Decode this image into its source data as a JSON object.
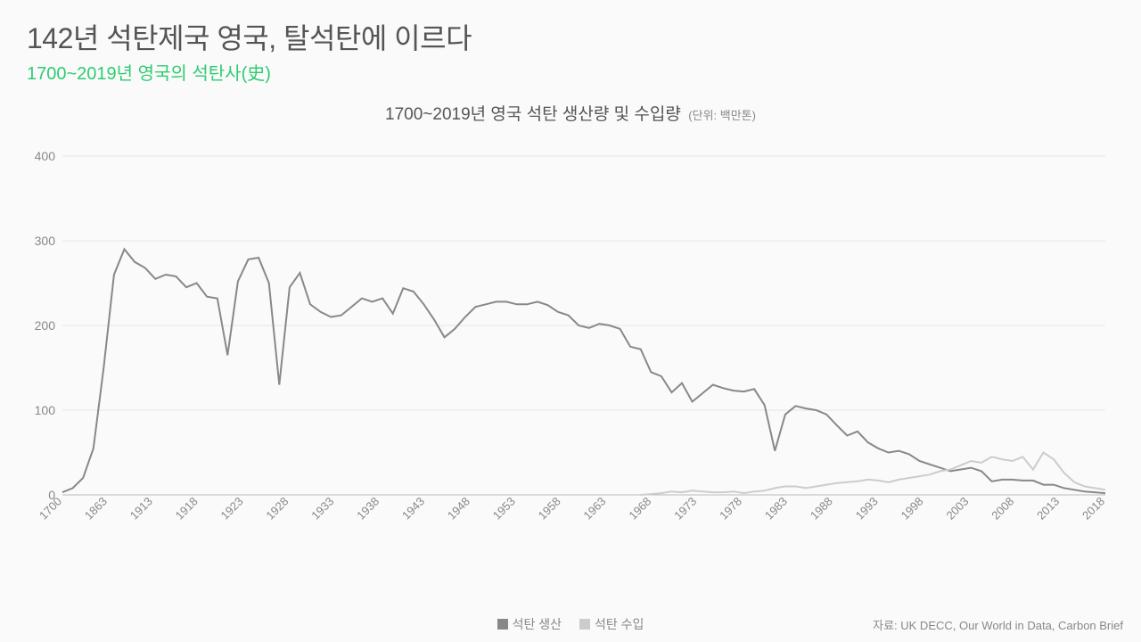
{
  "header": {
    "title": "142년 석탄제국 영국, 탈석탄에 이르다",
    "subtitle": "1700~2019년 영국의 석탄사(史)"
  },
  "chart": {
    "type": "line",
    "title": "1700~2019년 영국 석탄 생산량 및 수입량",
    "unit": "(단위: 백만톤)",
    "background_color": "#fafafa",
    "grid_color": "#e5e5e5",
    "axis_color": "#bbbbbb",
    "text_color": "#888888",
    "title_color": "#555555",
    "accent_color": "#2ecc71",
    "title_fontsize": 19,
    "label_fontsize": 14,
    "tick_fontsize": 13,
    "line_width": 2,
    "ylim": [
      0,
      400
    ],
    "ytick_step": 100,
    "x_labels": [
      "1700",
      "1863",
      "1913",
      "1918",
      "1923",
      "1928",
      "1933",
      "1938",
      "1943",
      "1948",
      "1953",
      "1958",
      "1963",
      "1968",
      "1973",
      "1978",
      "1983",
      "1988",
      "1993",
      "1998",
      "2003",
      "2008",
      "2013",
      "2018"
    ],
    "series": [
      {
        "name": "석탄 생산",
        "color": "#888888",
        "data": [
          [
            0,
            3
          ],
          [
            1,
            8
          ],
          [
            2,
            20
          ],
          [
            3,
            55
          ],
          [
            4,
            150
          ],
          [
            5,
            260
          ],
          [
            6,
            290
          ],
          [
            7,
            275
          ],
          [
            8,
            268
          ],
          [
            9,
            255
          ],
          [
            10,
            260
          ],
          [
            11,
            258
          ],
          [
            12,
            245
          ],
          [
            13,
            250
          ],
          [
            14,
            234
          ],
          [
            15,
            232
          ],
          [
            16,
            165
          ],
          [
            17,
            252
          ],
          [
            18,
            278
          ],
          [
            19,
            280
          ],
          [
            20,
            250
          ],
          [
            21,
            130
          ],
          [
            22,
            245
          ],
          [
            23,
            262
          ],
          [
            24,
            225
          ],
          [
            25,
            216
          ],
          [
            26,
            210
          ],
          [
            27,
            212
          ],
          [
            28,
            222
          ],
          [
            29,
            232
          ],
          [
            30,
            228
          ],
          [
            31,
            232
          ],
          [
            32,
            214
          ],
          [
            33,
            244
          ],
          [
            34,
            240
          ],
          [
            35,
            225
          ],
          [
            36,
            207
          ],
          [
            37,
            186
          ],
          [
            38,
            196
          ],
          [
            39,
            210
          ],
          [
            40,
            222
          ],
          [
            41,
            225
          ],
          [
            42,
            228
          ],
          [
            43,
            228
          ],
          [
            44,
            225
          ],
          [
            45,
            225
          ],
          [
            46,
            228
          ],
          [
            47,
            224
          ],
          [
            48,
            216
          ],
          [
            49,
            212
          ],
          [
            50,
            200
          ],
          [
            51,
            197
          ],
          [
            52,
            202
          ],
          [
            53,
            200
          ],
          [
            54,
            196
          ],
          [
            55,
            175
          ],
          [
            56,
            172
          ],
          [
            57,
            145
          ],
          [
            58,
            140
          ],
          [
            59,
            121
          ],
          [
            60,
            132
          ],
          [
            61,
            110
          ],
          [
            62,
            120
          ],
          [
            63,
            130
          ],
          [
            64,
            126
          ],
          [
            65,
            123
          ],
          [
            66,
            122
          ],
          [
            67,
            125
          ],
          [
            68,
            106
          ],
          [
            69,
            52
          ],
          [
            70,
            95
          ],
          [
            71,
            105
          ],
          [
            72,
            102
          ],
          [
            73,
            100
          ],
          [
            74,
            95
          ],
          [
            75,
            82
          ],
          [
            76,
            70
          ],
          [
            77,
            75
          ],
          [
            78,
            62
          ],
          [
            79,
            55
          ],
          [
            80,
            50
          ],
          [
            81,
            52
          ],
          [
            82,
            48
          ],
          [
            83,
            40
          ],
          [
            84,
            36
          ],
          [
            85,
            32
          ],
          [
            86,
            28
          ],
          [
            87,
            30
          ],
          [
            88,
            32
          ],
          [
            89,
            28
          ],
          [
            90,
            16
          ],
          [
            91,
            18
          ],
          [
            92,
            18
          ],
          [
            93,
            17
          ],
          [
            94,
            17
          ],
          [
            95,
            12
          ],
          [
            96,
            12
          ],
          [
            97,
            8
          ],
          [
            98,
            6
          ],
          [
            99,
            4
          ],
          [
            100,
            3
          ],
          [
            101,
            2
          ]
        ]
      },
      {
        "name": "석탄 수입",
        "color": "#cccccc",
        "data": [
          [
            56,
            0
          ],
          [
            57,
            1
          ],
          [
            58,
            2
          ],
          [
            59,
            4
          ],
          [
            60,
            3
          ],
          [
            61,
            5
          ],
          [
            62,
            4
          ],
          [
            63,
            3
          ],
          [
            64,
            3
          ],
          [
            65,
            4
          ],
          [
            66,
            2
          ],
          [
            67,
            4
          ],
          [
            68,
            5
          ],
          [
            69,
            8
          ],
          [
            70,
            10
          ],
          [
            71,
            10
          ],
          [
            72,
            8
          ],
          [
            73,
            10
          ],
          [
            74,
            12
          ],
          [
            75,
            14
          ],
          [
            76,
            15
          ],
          [
            77,
            16
          ],
          [
            78,
            18
          ],
          [
            79,
            17
          ],
          [
            80,
            15
          ],
          [
            81,
            18
          ],
          [
            82,
            20
          ],
          [
            83,
            22
          ],
          [
            84,
            24
          ],
          [
            85,
            28
          ],
          [
            86,
            30
          ],
          [
            87,
            35
          ],
          [
            88,
            40
          ],
          [
            89,
            38
          ],
          [
            90,
            45
          ],
          [
            91,
            42
          ],
          [
            92,
            40
          ],
          [
            93,
            45
          ],
          [
            94,
            30
          ],
          [
            95,
            50
          ],
          [
            96,
            42
          ],
          [
            97,
            26
          ],
          [
            98,
            15
          ],
          [
            99,
            10
          ],
          [
            100,
            8
          ],
          [
            101,
            6
          ]
        ]
      }
    ]
  },
  "legend": {
    "items": [
      {
        "label": "석탄 생산",
        "color": "#888888"
      },
      {
        "label": "석탄 수입",
        "color": "#cccccc"
      }
    ]
  },
  "source": {
    "prefix": "자료: ",
    "text": "UK DECC, Our World in Data, Carbon Brief"
  }
}
